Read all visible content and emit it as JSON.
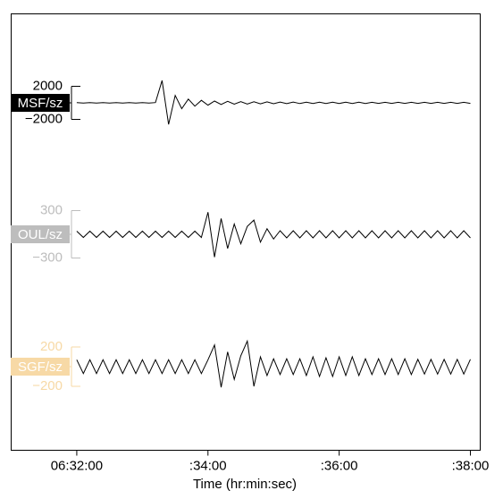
{
  "chart_data": {
    "type": "line",
    "xlabel": "Time (hr:min:sec)",
    "xlim": [
      31.0,
      38.15
    ],
    "xticks": [
      {
        "value": 32,
        "label": "06:32:00"
      },
      {
        "value": 34,
        "label": ":34:00"
      },
      {
        "value": 36,
        "label": ":36:00"
      },
      {
        "value": 38,
        "label": ":38:00"
      }
    ],
    "x": [
      32.0,
      32.1,
      32.2,
      32.3,
      32.4,
      32.5,
      32.6,
      32.7,
      32.8,
      32.9,
      33.0,
      33.1,
      33.2,
      33.3,
      33.4,
      33.5,
      33.6,
      33.7,
      33.8,
      33.9,
      34.0,
      34.1,
      34.2,
      34.3,
      34.4,
      34.5,
      34.6,
      34.7,
      34.8,
      34.9,
      35.0,
      35.1,
      35.2,
      35.3,
      35.4,
      35.5,
      35.6,
      35.7,
      35.8,
      35.9,
      36.0,
      36.1,
      36.2,
      36.3,
      36.4,
      36.5,
      36.6,
      36.7,
      36.8,
      36.9,
      37.0,
      37.1,
      37.2,
      37.3,
      37.4,
      37.5,
      37.6,
      37.7,
      37.8,
      37.9,
      38.0
    ],
    "series": [
      {
        "name": "MSF/sz",
        "color": "#000000",
        "line_color": "#000000",
        "ylim": [
          -2000,
          2000
        ],
        "yticks": [
          {
            "value": -2000,
            "label": "−2000"
          },
          2000
        ],
        "values": [
          30,
          -30,
          30,
          -30,
          30,
          -30,
          30,
          -30,
          30,
          -30,
          30,
          -30,
          30,
          2700,
          -2600,
          900,
          -700,
          450,
          -400,
          300,
          -280,
          220,
          -200,
          180,
          -160,
          150,
          -140,
          130,
          -120,
          120,
          -110,
          100,
          -100,
          100,
          -90,
          90,
          -90,
          80,
          -80,
          80,
          -80,
          80,
          -80,
          80,
          -80,
          70,
          -70,
          70,
          -70,
          70,
          -70,
          70,
          -70,
          70,
          -70,
          60,
          -60,
          60,
          -60,
          60,
          -60
        ]
      },
      {
        "name": "OUL/sz",
        "color": "#bdbdbd",
        "line_color": "#000000",
        "ylim": [
          -300,
          300
        ],
        "yticks": [
          {
            "value": -300,
            "label": "−300"
          },
          300
        ],
        "values": [
          40,
          -40,
          40,
          -40,
          40,
          -40,
          40,
          -40,
          40,
          -40,
          40,
          -40,
          40,
          -40,
          40,
          -40,
          40,
          -40,
          40,
          -40,
          280,
          -290,
          200,
          -180,
          130,
          -120,
          100,
          180,
          -100,
          70,
          -60,
          45,
          -45,
          45,
          -45,
          45,
          -45,
          45,
          -45,
          45,
          -45,
          45,
          -45,
          45,
          -45,
          45,
          -45,
          45,
          -45,
          45,
          -45,
          45,
          -45,
          45,
          -45,
          45,
          -45,
          45,
          -45,
          45,
          -45
        ]
      },
      {
        "name": "SGF/sz",
        "color": "#f7d9a6",
        "line_color": "#000000",
        "ylim": [
          -200,
          200
        ],
        "yticks": [
          {
            "value": -200,
            "label": "−200"
          },
          200
        ],
        "values": [
          70,
          -70,
          70,
          -70,
          70,
          -70,
          70,
          -70,
          70,
          -70,
          70,
          -70,
          70,
          -70,
          70,
          -70,
          70,
          -70,
          70,
          -70,
          70,
          220,
          -210,
          150,
          -130,
          110,
          260,
          -200,
          100,
          -90,
          80,
          -80,
          80,
          -80,
          80,
          -90,
          100,
          -100,
          90,
          -100,
          100,
          -90,
          100,
          -90,
          80,
          -80,
          80,
          -80,
          80,
          -80,
          80,
          -80,
          75,
          -75,
          75,
          -75,
          75,
          -75,
          75,
          -75,
          75
        ]
      }
    ]
  }
}
